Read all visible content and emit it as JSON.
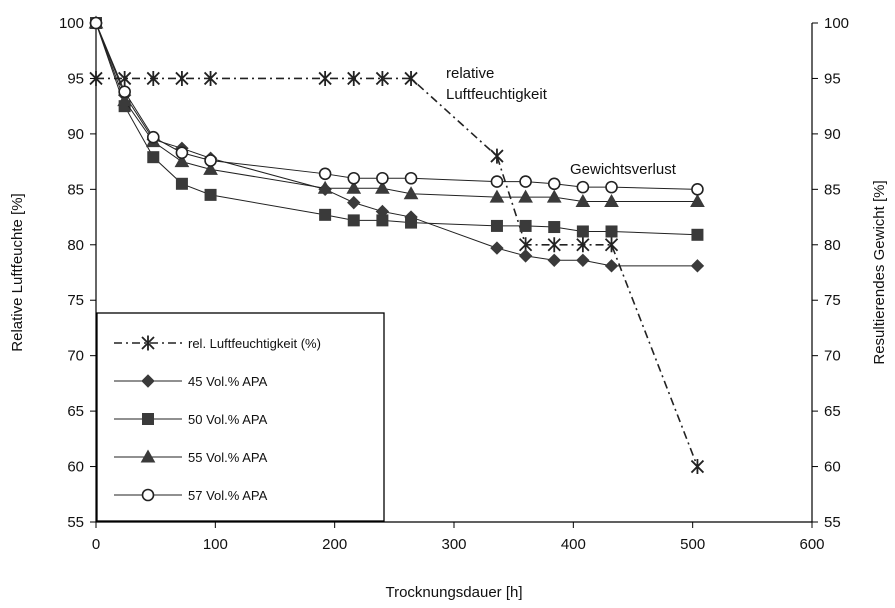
{
  "chart_data": {
    "type": "line",
    "xlabel": "Trocknungsdauer [h]",
    "ylabel_left": "Relative Luftfeuchte [%]",
    "ylabel_right": "Resultierendes Gewicht [%]",
    "xlim": [
      0,
      600
    ],
    "xticks": [
      0,
      100,
      200,
      300,
      400,
      500,
      600
    ],
    "ylim": [
      55,
      100
    ],
    "yticks": [
      55,
      60,
      65,
      70,
      75,
      80,
      85,
      90,
      95,
      100
    ],
    "grid": false,
    "legend_position": "lower-left",
    "annotations": [
      {
        "lines": [
          "relative",
          "Luftfeuchtigkeit"
        ]
      },
      {
        "lines": [
          "Gewichtsverlust"
        ]
      }
    ],
    "series": [
      {
        "name": "rel. Luftfeuchtigkeit (%)",
        "marker": "star",
        "line_style": "dash-dot",
        "x": [
          0,
          24,
          48,
          72,
          96,
          192,
          216,
          240,
          264,
          336,
          360,
          384,
          408,
          432,
          504
        ],
        "y": [
          95,
          95,
          95,
          95,
          95,
          95,
          95,
          95,
          95,
          88,
          80,
          80,
          80,
          80,
          60
        ]
      },
      {
        "name": "45 Vol.% APA",
        "marker": "diamond",
        "line_style": "solid",
        "x": [
          0,
          24,
          48,
          72,
          96,
          192,
          216,
          240,
          264,
          336,
          360,
          384,
          408,
          432,
          504
        ],
        "y": [
          100,
          93.5,
          89.5,
          88.7,
          87.8,
          85,
          83.8,
          83,
          82.5,
          79.7,
          79,
          78.6,
          78.6,
          78.1,
          78.1
        ]
      },
      {
        "name": "50 Vol.% APA",
        "marker": "square",
        "line_style": "solid",
        "x": [
          0,
          24,
          48,
          72,
          96,
          192,
          216,
          240,
          264,
          336,
          360,
          384,
          408,
          432,
          504
        ],
        "y": [
          100,
          92.5,
          87.9,
          85.5,
          84.5,
          82.7,
          82.2,
          82.2,
          82,
          81.7,
          81.7,
          81.6,
          81.2,
          81.2,
          80.9
        ]
      },
      {
        "name": "55 Vol.% APA",
        "marker": "triangle",
        "line_style": "solid",
        "x": [
          0,
          24,
          48,
          72,
          96,
          192,
          216,
          240,
          264,
          336,
          360,
          384,
          408,
          432,
          504
        ],
        "y": [
          100,
          93,
          89.3,
          87.5,
          86.8,
          85.1,
          85.1,
          85.1,
          84.6,
          84.3,
          84.3,
          84.3,
          83.9,
          83.9,
          83.9
        ]
      },
      {
        "name": "57 Vol.% APA",
        "marker": "circle-open",
        "line_style": "solid",
        "x": [
          0,
          24,
          48,
          72,
          96,
          192,
          216,
          240,
          264,
          336,
          360,
          384,
          408,
          432,
          504
        ],
        "y": [
          100,
          93.8,
          89.7,
          88.3,
          87.6,
          86.4,
          86,
          86,
          86,
          85.7,
          85.7,
          85.5,
          85.2,
          85.2,
          85
        ]
      }
    ]
  }
}
